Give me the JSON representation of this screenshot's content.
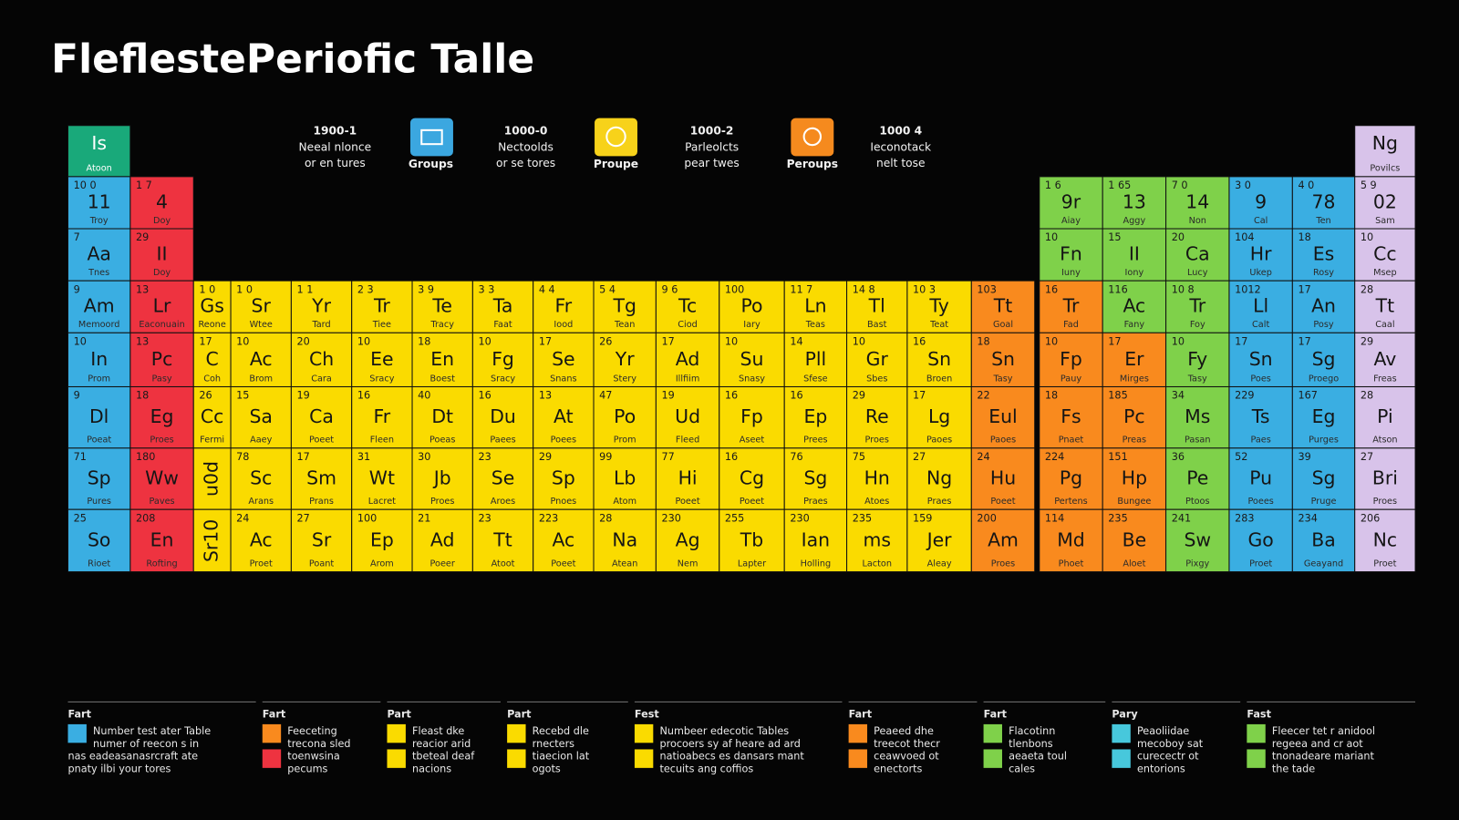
{
  "header": {
    "title": "FleflestePeriofic Talle"
  },
  "key_text": [
    [
      "1900-1",
      "Neeal nlonce",
      "or en tures"
    ],
    [
      "1000-0",
      "Nectoolds",
      "or se tores"
    ],
    [
      "1000-2",
      "Parleolcts",
      "pear twes"
    ],
    [
      "1000 4",
      "Ieconotack",
      "nelt tose"
    ]
  ],
  "key_icons": [
    "Groups",
    "Proupe",
    "Peroups"
  ],
  "table": {
    "header_left": {
      "s": "Is",
      "t": "Atoon"
    },
    "header_right": {
      "s": "Ng",
      "t": "Povilcs"
    },
    "rows": [
      [
        {
          "n": "10 0",
          "s": "11",
          "t": "Troy"
        },
        {
          "n": "1 7",
          "s": "4",
          "t": "Doy"
        },
        {
          "n": "1 6",
          "s": "9r",
          "t": "Aiay"
        },
        {
          "n": "1 65",
          "s": "13",
          "t": "Aggy"
        },
        {
          "n": "7 0",
          "s": "14",
          "t": "Non"
        },
        {
          "n": "3 0",
          "s": "9",
          "t": "Cal"
        },
        {
          "n": "4 0",
          "s": "78",
          "t": "Ten"
        },
        {
          "n": "5 9",
          "s": "02",
          "t": "Sam"
        }
      ],
      [
        {
          "n": "7",
          "s": "Aa",
          "t": "Tnes"
        },
        {
          "n": "29",
          "s": "II",
          "t": "Doy"
        },
        {
          "n": "10",
          "s": "Fn",
          "t": "Iuny"
        },
        {
          "n": "15",
          "s": "II",
          "t": "Iony"
        },
        {
          "n": "20",
          "s": "Ca",
          "t": "Lucy"
        },
        {
          "n": "104",
          "s": "Hr",
          "t": "Ukep"
        },
        {
          "n": "18",
          "s": "Es",
          "t": "Rosy"
        },
        {
          "n": "10",
          "s": "Cc",
          "t": "Msep"
        }
      ],
      [
        {
          "n": "9",
          "s": "Am",
          "t": "Memoord"
        },
        {
          "n": "13",
          "s": "Lr",
          "t": "Eaconuain"
        },
        {
          "n": "1 0",
          "s": "Gs",
          "t": "Reone"
        },
        {
          "n": "1 0",
          "s": "Sr",
          "t": "Wtee"
        },
        {
          "n": "1 1",
          "s": "Yr",
          "t": "Tard"
        },
        {
          "n": "2 3",
          "s": "Tr",
          "t": "Tiee"
        },
        {
          "n": "3 9",
          "s": "Te",
          "t": "Tracy"
        },
        {
          "n": "3 3",
          "s": "Ta",
          "t": "Faat"
        },
        {
          "n": "4 4",
          "s": "Fr",
          "t": "Iood"
        },
        {
          "n": "5 4",
          "s": "Tg",
          "t": "Tean"
        },
        {
          "n": "9 6",
          "s": "Tc",
          "t": "Ciod"
        },
        {
          "n": "100",
          "s": "Po",
          "t": "Iary"
        },
        {
          "n": "11 7",
          "s": "Ln",
          "t": "Teas"
        },
        {
          "n": "14 8",
          "s": "Tl",
          "t": "Bast"
        },
        {
          "n": "10 3",
          "s": "Ty",
          "t": "Teat"
        },
        {
          "n": "103",
          "s": "Tt",
          "t": "Goal"
        },
        {
          "n": "16",
          "s": "Tr",
          "t": "Fad"
        },
        {
          "n": "116",
          "s": "Ac",
          "t": "Fany"
        },
        {
          "n": "10 8",
          "s": "Tr",
          "t": "Foy"
        },
        {
          "n": "1012",
          "s": "Ll",
          "t": "Calt"
        },
        {
          "n": "17",
          "s": "An",
          "t": "Posy"
        },
        {
          "n": "28",
          "s": "Tt",
          "t": "Caal"
        }
      ],
      [
        {
          "n": "10",
          "s": "In",
          "t": "Prom"
        },
        {
          "n": "13",
          "s": "Pc",
          "t": "Pasy"
        },
        {
          "n": "17",
          "s": "C",
          "t": "Coh"
        },
        {
          "n": "10",
          "s": "Ac",
          "t": "Brom"
        },
        {
          "n": "20",
          "s": "Ch",
          "t": "Cara"
        },
        {
          "n": "10",
          "s": "Ee",
          "t": "Sracy"
        },
        {
          "n": "18",
          "s": "En",
          "t": "Boest"
        },
        {
          "n": "10",
          "s": "Fg",
          "t": "Sracy"
        },
        {
          "n": "17",
          "s": "Se",
          "t": "Snans"
        },
        {
          "n": "26",
          "s": "Yr",
          "t": "Stery"
        },
        {
          "n": "17",
          "s": "Ad",
          "t": "Illfiim"
        },
        {
          "n": "10",
          "s": "Su",
          "t": "Snasy"
        },
        {
          "n": "14",
          "s": "Pll",
          "t": "Sfese"
        },
        {
          "n": "10",
          "s": "Gr",
          "t": "Sbes"
        },
        {
          "n": "16",
          "s": "Sn",
          "t": "Broen"
        },
        {
          "n": "18",
          "s": "Sn",
          "t": "Tasy"
        },
        {
          "n": "10",
          "s": "Fp",
          "t": "Pauy"
        },
        {
          "n": "17",
          "s": "Er",
          "t": "Mirges"
        },
        {
          "n": "10",
          "s": "Fy",
          "t": "Tasy"
        },
        {
          "n": "17",
          "s": "Sn",
          "t": "Poes"
        },
        {
          "n": "17",
          "s": "Sg",
          "t": "Proego"
        },
        {
          "n": "29",
          "s": "Av",
          "t": "Freas"
        }
      ],
      [
        {
          "n": "9",
          "s": "Dl",
          "t": "Poeat"
        },
        {
          "n": "18",
          "s": "Eg",
          "t": "Proes"
        },
        {
          "n": "26",
          "s": "Cc",
          "t": "Fermi"
        },
        {
          "n": "15",
          "s": "Sa",
          "t": "Aaey"
        },
        {
          "n": "19",
          "s": "Ca",
          "t": "Poeet"
        },
        {
          "n": "16",
          "s": "Fr",
          "t": "Fleen"
        },
        {
          "n": "40",
          "s": "Dt",
          "t": "Poeas"
        },
        {
          "n": "16",
          "s": "Du",
          "t": "Paees"
        },
        {
          "n": "13",
          "s": "At",
          "t": "Poees"
        },
        {
          "n": "47",
          "s": "Po",
          "t": "Prom"
        },
        {
          "n": "19",
          "s": "Ud",
          "t": "Fleed"
        },
        {
          "n": "16",
          "s": "Fp",
          "t": "Aseet"
        },
        {
          "n": "16",
          "s": "Ep",
          "t": "Prees"
        },
        {
          "n": "29",
          "s": "Re",
          "t": "Proes"
        },
        {
          "n": "17",
          "s": "Lg",
          "t": "Paoes"
        },
        {
          "n": "22",
          "s": "Eul",
          "t": "Paoes"
        },
        {
          "n": "18",
          "s": "Fs",
          "t": "Pnaet"
        },
        {
          "n": "185",
          "s": "Pc",
          "t": "Preas"
        },
        {
          "n": "34",
          "s": "Ms",
          "t": "Pasan"
        },
        {
          "n": "229",
          "s": "Ts",
          "t": "Paes"
        },
        {
          "n": "167",
          "s": "Eg",
          "t": "Purges"
        },
        {
          "n": "28",
          "s": "Pi",
          "t": "Atson"
        }
      ],
      [
        {
          "n": "71",
          "s": "Sp",
          "t": "Pures"
        },
        {
          "n": "180",
          "s": "Ww",
          "t": "Paves"
        },
        {
          "s": "u0d"
        },
        {
          "n": "78",
          "s": "Sc",
          "t": "Arans"
        },
        {
          "n": "17",
          "s": "Sm",
          "t": "Prans"
        },
        {
          "n": "31",
          "s": "Wt",
          "t": "Lacret"
        },
        {
          "n": "30",
          "s": "Jb",
          "t": "Proes"
        },
        {
          "n": "23",
          "s": "Se",
          "t": "Aroes"
        },
        {
          "n": "29",
          "s": "Sp",
          "t": "Pnoes"
        },
        {
          "n": "99",
          "s": "Lb",
          "t": "Atom"
        },
        {
          "n": "77",
          "s": "Hi",
          "t": "Poeet"
        },
        {
          "n": "16",
          "s": "Cg",
          "t": "Poeet"
        },
        {
          "n": "76",
          "s": "Sg",
          "t": "Praes"
        },
        {
          "n": "75",
          "s": "Hn",
          "t": "Atoes"
        },
        {
          "n": "27",
          "s": "Ng",
          "t": "Praes"
        },
        {
          "n": "24",
          "s": "Hu",
          "t": "Poeet"
        },
        {
          "n": "224",
          "s": "Pg",
          "t": "Pertens"
        },
        {
          "n": "151",
          "s": "Hp",
          "t": "Bungee"
        },
        {
          "n": "36",
          "s": "Pe",
          "t": "Ptoos"
        },
        {
          "n": "52",
          "s": "Pu",
          "t": "Poees"
        },
        {
          "n": "39",
          "s": "Sg",
          "t": "Pruge"
        },
        {
          "n": "27",
          "s": "Bri",
          "t": "Proes"
        }
      ],
      [
        {
          "n": "25",
          "s": "So",
          "t": "Rioet"
        },
        {
          "n": "208",
          "s": "En",
          "t": "Rofting"
        },
        {
          "s": "Sr10"
        },
        {
          "n": "24",
          "s": "Ac",
          "t": "Proet"
        },
        {
          "n": "27",
          "s": "Sr",
          "t": "Poant"
        },
        {
          "n": "100",
          "s": "Ep",
          "t": "Arom"
        },
        {
          "n": "21",
          "s": "Ad",
          "t": "Poeer"
        },
        {
          "n": "23",
          "s": "Tt",
          "t": "Atoot"
        },
        {
          "n": "223",
          "s": "Ac",
          "t": "Poeet"
        },
        {
          "n": "28",
          "s": "Na",
          "t": "Atean"
        },
        {
          "n": "230",
          "s": "Ag",
          "t": "Nem"
        },
        {
          "n": "255",
          "s": "Tb",
          "t": "Lapter"
        },
        {
          "n": "230",
          "s": "Ian",
          "t": "Holling"
        },
        {
          "n": "235",
          "s": "ms",
          "t": "Lacton"
        },
        {
          "n": "159",
          "s": "Jer",
          "t": "Aleay"
        },
        {
          "n": "200",
          "s": "Am",
          "t": "Proes"
        },
        {
          "n": "114",
          "s": "Md",
          "t": "Phoet"
        },
        {
          "n": "235",
          "s": "Be",
          "t": "Aloet"
        },
        {
          "n": "241",
          "s": "Sw",
          "t": "Pixgy"
        },
        {
          "n": "283",
          "s": "Go",
          "t": "Proet"
        },
        {
          "n": "234",
          "s": "Ba",
          "t": "Geayand"
        },
        {
          "n": "206",
          "s": "Nc",
          "t": "Proet"
        }
      ]
    ]
  },
  "footer": [
    {
      "heading": "Fart",
      "items": [
        {
          "lines": [
            "Number test ater Table",
            "numer of reecon s in",
            "nas eadeasanasrcraft ate",
            "pnaty ilbi your tores"
          ]
        }
      ]
    },
    {
      "heading": "Fart",
      "items": [
        {
          "lines": [
            "Feeceting",
            "trecona sled"
          ]
        },
        {
          "lines": [
            "toenwsina",
            "pecums"
          ]
        }
      ]
    },
    {
      "heading": "Part",
      "items": [
        {
          "lines": [
            "Fleast dke",
            "reacior arid"
          ]
        },
        {
          "lines": [
            "tbeteal deaf",
            "nacions"
          ]
        }
      ]
    },
    {
      "heading": "Part",
      "items": [
        {
          "lines": [
            "Recebd dle",
            "rnecters"
          ]
        },
        {
          "lines": [
            "tiaecion lat",
            "ogots"
          ]
        }
      ]
    },
    {
      "heading": "Fest",
      "items": [
        {
          "lines": [
            "Numbeer edecotic Tables",
            "procoers sy af heare ad ard"
          ]
        },
        {
          "lines": [
            "natioabecs es dansars mant",
            "tecuits ang coffios"
          ]
        }
      ]
    },
    {
      "heading": "Fart",
      "items": [
        {
          "lines": [
            "Peaeed dhe",
            "treecot thecr"
          ]
        },
        {
          "lines": [
            "ceawvoed ot",
            "enectorts"
          ]
        }
      ]
    },
    {
      "heading": "Fart",
      "items": [
        {
          "lines": [
            "Flacotinn",
            "tlenbons"
          ]
        },
        {
          "lines": [
            "aeaeta toul",
            "cales"
          ]
        }
      ]
    },
    {
      "heading": "Pary",
      "items": [
        {
          "lines": [
            "Peaoliidae",
            "mecoboy sat"
          ]
        },
        {
          "lines": [
            "curecectr ot",
            "entorions"
          ]
        }
      ]
    },
    {
      "heading": "Fast",
      "items": [
        {
          "lines": [
            "Fleecer tet r anidool",
            "regeea and cr aot"
          ]
        },
        {
          "lines": [
            "tnonadeare mariant",
            "the tade"
          ]
        }
      ]
    }
  ]
}
